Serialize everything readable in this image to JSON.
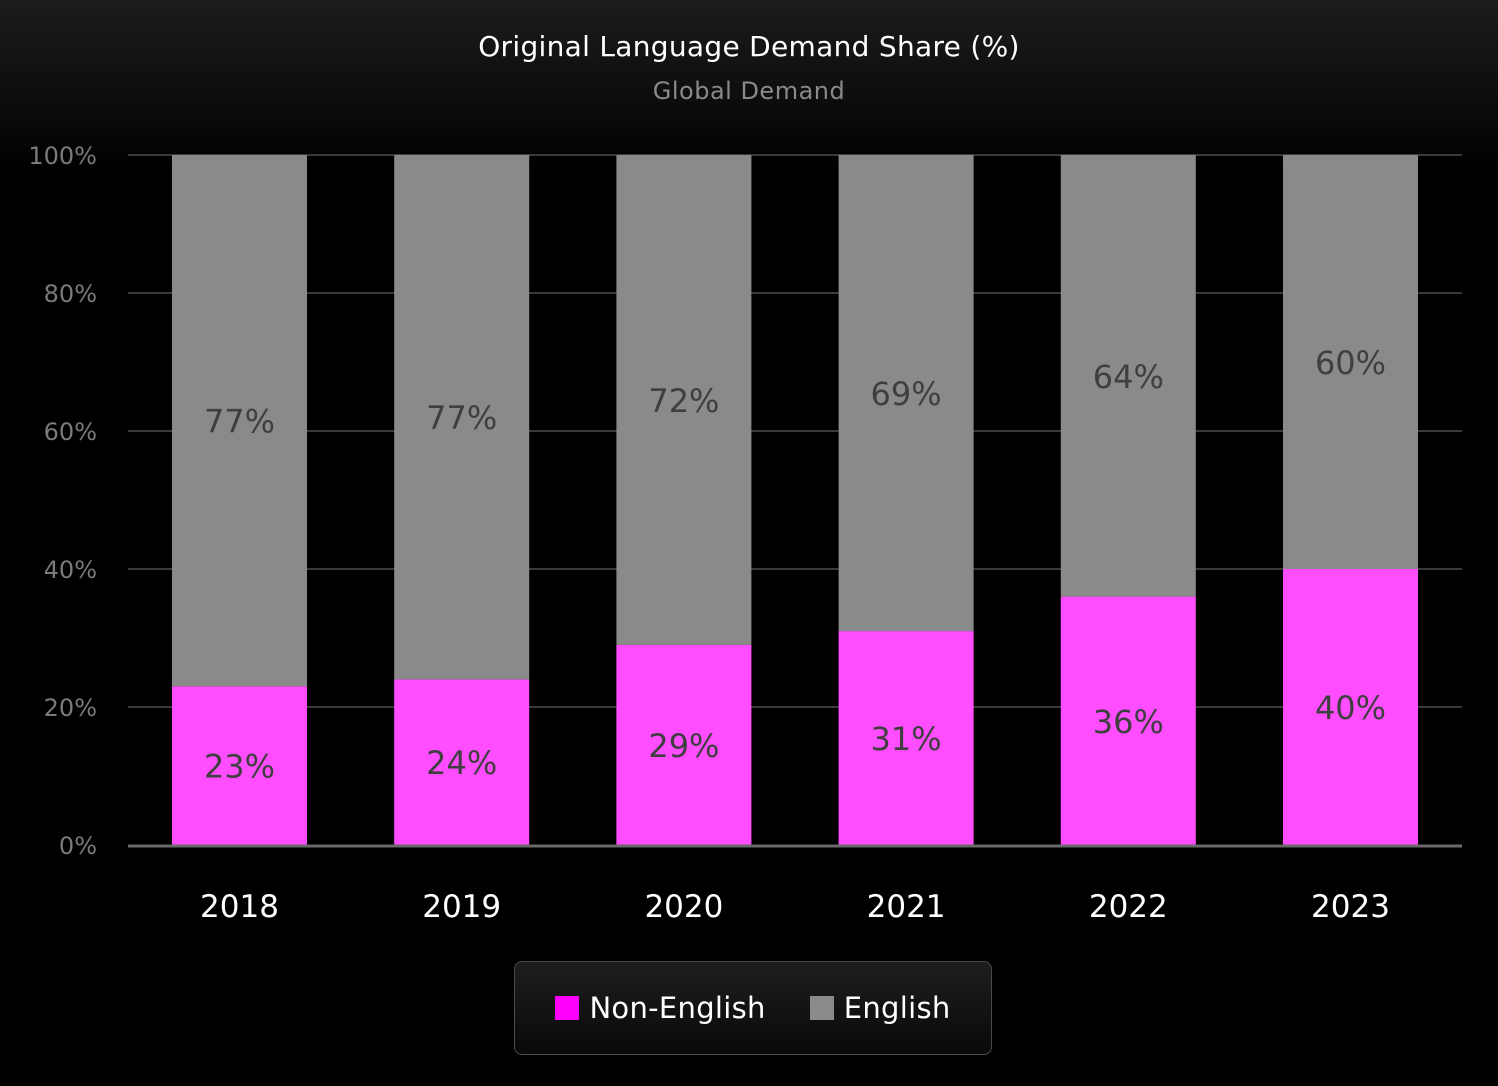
{
  "chart_data": {
    "type": "bar",
    "stacked": true,
    "title": "Original Language Demand Share (%)",
    "subtitle": "Global Demand",
    "categories": [
      "2018",
      "2019",
      "2020",
      "2021",
      "2022",
      "2023"
    ],
    "series": [
      {
        "name": "Non-English",
        "color": "#ff4dff",
        "values": [
          23,
          24,
          29,
          31,
          36,
          40
        ],
        "labels": [
          "23%",
          "24%",
          "29%",
          "31%",
          "36%",
          "40%"
        ]
      },
      {
        "name": "English",
        "color": "#8a8a8a",
        "values": [
          77,
          77,
          72,
          69,
          64,
          60
        ],
        "labels": [
          "77%",
          "77%",
          "72%",
          "69%",
          "64%",
          "60%"
        ]
      }
    ],
    "ylim": [
      0,
      100
    ],
    "yticks": [
      0,
      20,
      40,
      60,
      80,
      100
    ],
    "ytick_labels": [
      "0%",
      "20%",
      "40%",
      "60%",
      "80%",
      "100%"
    ],
    "grid": true,
    "legend_position": "bottom",
    "legend_swatch_colors": {
      "Non-English": "#ff00ff",
      "English": "#8a8a8a"
    },
    "background_color": "#000000"
  }
}
